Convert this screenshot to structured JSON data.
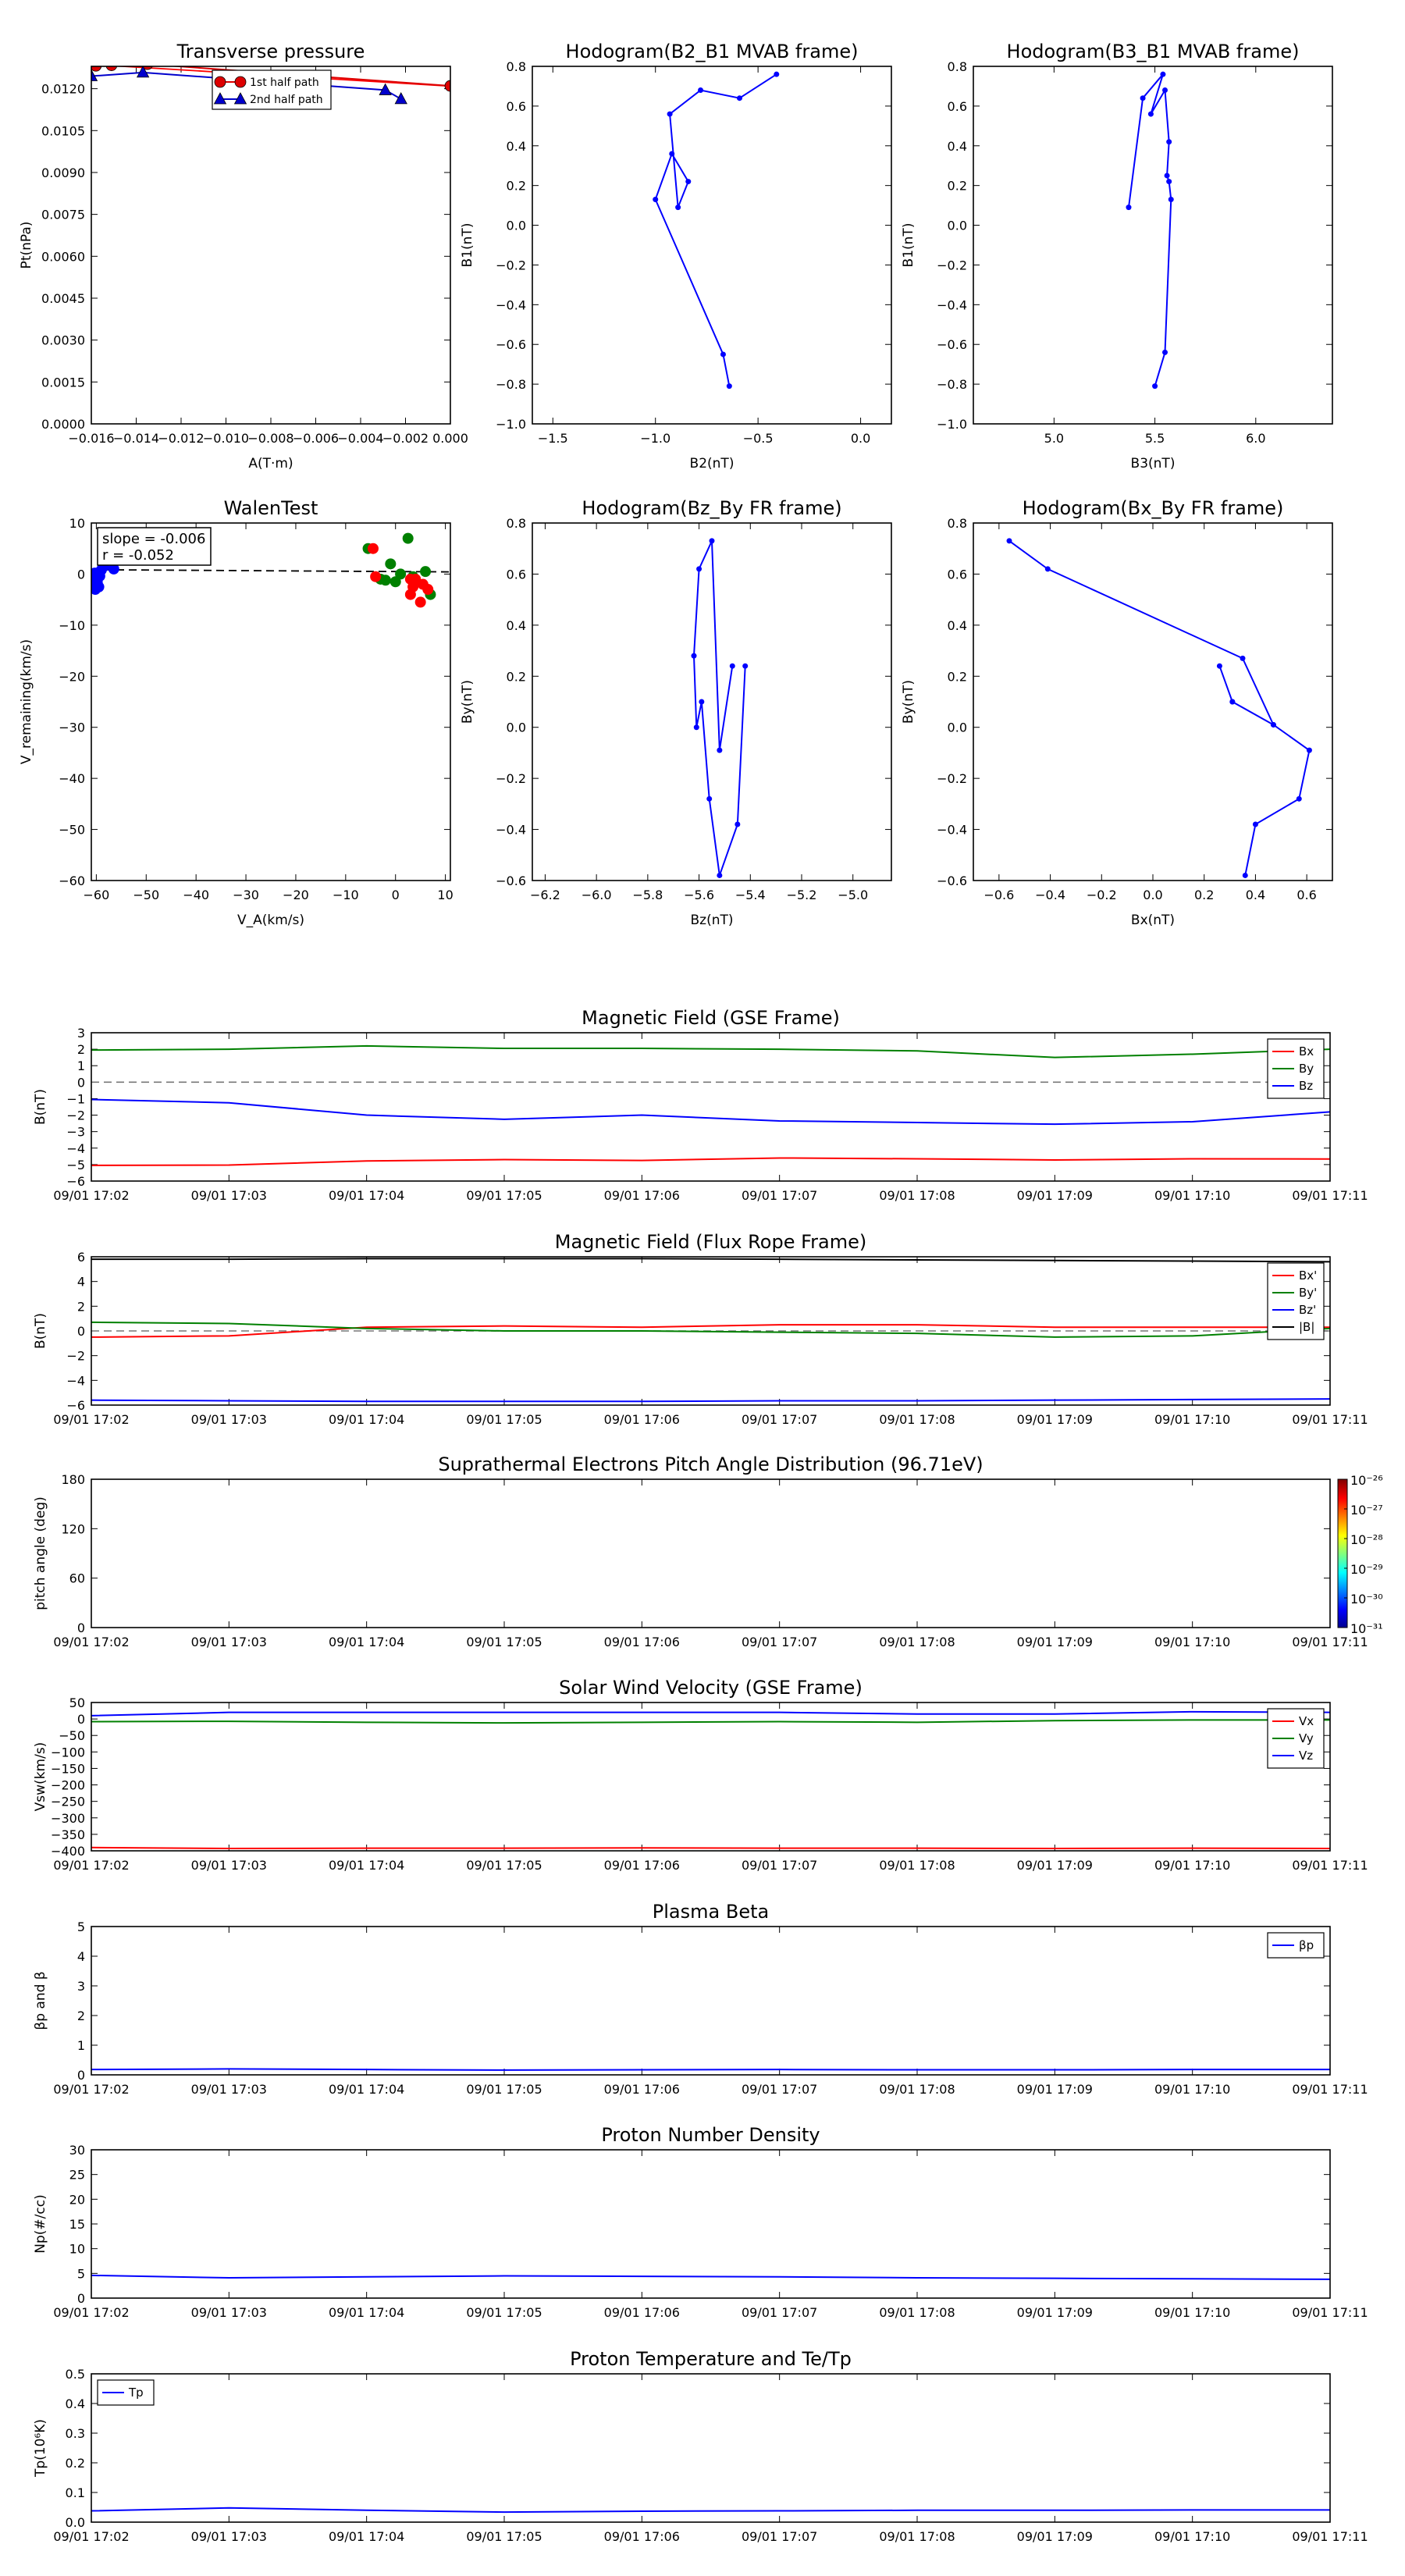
{
  "time_ticks": [
    "09/01 17:02",
    "09/01 17:03",
    "09/01 17:04",
    "09/01 17:05",
    "09/01 17:06",
    "09/01 17:07",
    "09/01 17:08",
    "09/01 17:09",
    "09/01 17:10",
    "09/01 17:11"
  ],
  "chart_data": [
    {
      "id": "pt",
      "type": "line",
      "title": "Transverse pressure",
      "xlabel": "A(T·m)",
      "ylabel": "Pt(nPa)",
      "xlim": [
        -0.016,
        0.0
      ],
      "ylim": [
        0.0,
        0.0128
      ],
      "xticks": [
        -0.016,
        -0.014,
        -0.012,
        -0.01,
        -0.008,
        -0.006,
        -0.004,
        -0.002,
        0.0
      ],
      "xticklabels": [
        "−0.016",
        "−0.014",
        "−0.012",
        "−0.010",
        "−0.008",
        "−0.006",
        "−0.004",
        "−0.002",
        "0.000"
      ],
      "yticks": [
        0,
        0.0015,
        0.003,
        0.0045,
        0.006,
        0.0075,
        0.009,
        0.0105,
        0.012
      ],
      "yticklabels": [
        "0.0000",
        "0.0015",
        "0.0030",
        "0.0045",
        "0.0060",
        "0.0075",
        "0.0090",
        "0.0105",
        "0.0120"
      ],
      "legend": "top-center",
      "fit_line": {
        "x": [
          -0.016,
          0.0
        ],
        "y": [
          0.01287,
          0.01209
        ],
        "color": "#ff0000"
      },
      "series": [
        {
          "name": "1st half path",
          "color": "#dd0000",
          "marker": "circle",
          "x": [
            -0.0158,
            -0.0151,
            -0.0135,
            -0.0
          ],
          "y": [
            0.01282,
            0.01284,
            0.01288,
            0.0121
          ]
        },
        {
          "name": "2nd half path",
          "color": "#0000cc",
          "marker": "triangle",
          "x": [
            -0.016,
            -0.0137,
            -0.0029,
            -0.0022
          ],
          "y": [
            0.01245,
            0.01258,
            0.01195,
            0.01163
          ]
        }
      ]
    },
    {
      "id": "h1",
      "type": "line",
      "title": "Hodogram(B2_B1 MVAB frame)",
      "xlabel": "B2(nT)",
      "ylabel": "B1(nT)",
      "xlim": [
        -1.6,
        0.15
      ],
      "ylim": [
        -1.0,
        0.8
      ],
      "xticks": [
        -1.5,
        -1.0,
        -0.5,
        0.0
      ],
      "xticklabels": [
        "−1.5",
        "−1.0",
        "−0.5",
        "0.0"
      ],
      "yticks": [
        -1.0,
        -0.8,
        -0.6,
        -0.4,
        -0.2,
        0.0,
        0.2,
        0.4,
        0.6,
        0.8
      ],
      "yticklabels": [
        "−1.0",
        "−0.8",
        "−0.6",
        "−0.4",
        "−0.2",
        "0.0",
        "0.2",
        "0.4",
        "0.6",
        "0.8"
      ],
      "series": [
        {
          "name": "",
          "color": "#0000ff",
          "marker": "dot",
          "x": [
            -0.64,
            -0.67,
            -1.0,
            -0.92,
            -0.84,
            -0.89,
            -0.93,
            -0.78,
            -0.59,
            -0.41
          ],
          "y": [
            -0.81,
            -0.65,
            0.13,
            0.36,
            0.22,
            0.09,
            0.56,
            0.68,
            0.64,
            0.76
          ]
        }
      ]
    },
    {
      "id": "h2",
      "type": "line",
      "title": "Hodogram(B3_B1 MVAB frame)",
      "xlabel": "B3(nT)",
      "ylabel": "B1(nT)",
      "xlim": [
        4.6,
        6.38
      ],
      "ylim": [
        -1.0,
        0.8
      ],
      "xticks": [
        5.0,
        5.5,
        6.0
      ],
      "xticklabels": [
        "5.0",
        "5.5",
        "6.0"
      ],
      "yticks": [
        -1.0,
        -0.8,
        -0.6,
        -0.4,
        -0.2,
        0.0,
        0.2,
        0.4,
        0.6,
        0.8
      ],
      "yticklabels": [
        "−1.0",
        "−0.8",
        "−0.6",
        "−0.4",
        "−0.2",
        "0.0",
        "0.2",
        "0.4",
        "0.6",
        "0.8"
      ],
      "series": [
        {
          "name": "",
          "color": "#0000ff",
          "marker": "dot",
          "x": [
            5.37,
            5.44,
            5.54,
            5.48,
            5.55,
            5.57,
            5.56,
            5.57,
            5.58,
            5.55,
            5.5
          ],
          "y": [
            0.09,
            0.64,
            0.76,
            0.56,
            0.68,
            0.42,
            0.25,
            0.22,
            0.13,
            -0.64,
            -0.81
          ]
        }
      ]
    },
    {
      "id": "walen",
      "type": "scatter",
      "title": "WalenTest",
      "xlabel": "V_A(km/s)",
      "ylabel": "V_remaining(km/s)",
      "xlim": [
        -61,
        11
      ],
      "ylim": [
        -60,
        10
      ],
      "xticks": [
        -60,
        -50,
        -40,
        -30,
        -20,
        -10,
        0,
        10
      ],
      "xticklabels": [
        "−60",
        "−50",
        "−40",
        "−30",
        "−20",
        "−10",
        "0",
        "10"
      ],
      "yticks": [
        -60,
        -50,
        -40,
        -30,
        -20,
        -10,
        0,
        10
      ],
      "yticklabels": [
        "−60",
        "−50",
        "−40",
        "−30",
        "−20",
        "−10",
        "0",
        "10"
      ],
      "annotation": [
        "slope = -0.006",
        "r = -0.052"
      ],
      "fit_line": {
        "x": [
          -61,
          11
        ],
        "y": [
          0.86,
          0.43
        ],
        "color": "#000000"
      },
      "series": [
        {
          "name": "",
          "color": "#0000ff",
          "x": [
            -60.5,
            -59.5,
            -60.2,
            -59.8,
            -59.0,
            -58.5,
            -56.5,
            -60.0,
            -60.3,
            -59.3
          ],
          "y": [
            -1.0,
            -2.5,
            -3.0,
            -1.6,
            0.8,
            1.5,
            1.0,
            -2.0,
            0.2,
            -0.4
          ]
        },
        {
          "name": "",
          "color": "#008000",
          "x": [
            -5.5,
            -4.0,
            -3.0,
            -1.0,
            0.0,
            1.0,
            2.5,
            3.5,
            6.0,
            7.0,
            -2.0
          ],
          "y": [
            5.0,
            11.0,
            -1.0,
            2.0,
            -1.5,
            0.0,
            7.0,
            -0.5,
            0.5,
            -4.0,
            -1.2
          ]
        },
        {
          "name": "",
          "color": "#ff0000",
          "x": [
            -4.5,
            -4.0,
            3.0,
            3.5,
            4.0,
            5.0,
            5.5,
            6.5,
            3.0
          ],
          "y": [
            5.0,
            -0.5,
            -4.0,
            -2.5,
            -1.0,
            -5.5,
            -2.0,
            -3.0,
            -1.0
          ]
        }
      ]
    },
    {
      "id": "h3",
      "type": "line",
      "title": "Hodogram(Bz_By FR frame)",
      "xlabel": "Bz(nT)",
      "ylabel": "By(nT)",
      "xlim": [
        -6.25,
        -4.85
      ],
      "ylim": [
        -0.6,
        0.8
      ],
      "xticks": [
        -6.2,
        -6.0,
        -5.8,
        -5.6,
        -5.4,
        -5.2,
        -5.0
      ],
      "xticklabels": [
        "−6.2",
        "−6.0",
        "−5.8",
        "−5.6",
        "−5.4",
        "−5.2",
        "−5.0"
      ],
      "yticks": [
        -0.6,
        -0.4,
        -0.2,
        0.0,
        0.2,
        0.4,
        0.6,
        0.8
      ],
      "yticklabels": [
        "−0.6",
        "−0.4",
        "−0.2",
        "0.0",
        "0.2",
        "0.4",
        "0.6",
        "0.8"
      ],
      "series": [
        {
          "name": "",
          "color": "#0000ff",
          "marker": "dot",
          "x": [
            -5.42,
            -5.45,
            -5.52,
            -5.56,
            -5.59,
            -5.61,
            -5.62,
            -5.6,
            -5.55,
            -5.52,
            -5.47
          ],
          "y": [
            0.24,
            -0.38,
            -0.58,
            -0.28,
            0.1,
            0.0,
            0.28,
            0.62,
            0.73,
            -0.09,
            0.24
          ]
        }
      ]
    },
    {
      "id": "h4",
      "type": "line",
      "title": "Hodogram(Bx_By FR frame)",
      "xlabel": "Bx(nT)",
      "ylabel": "By(nT)",
      "xlim": [
        -0.7,
        0.7
      ],
      "ylim": [
        -0.6,
        0.8
      ],
      "xticks": [
        -0.6,
        -0.4,
        -0.2,
        0.0,
        0.2,
        0.4,
        0.6
      ],
      "xticklabels": [
        "−0.6",
        "−0.4",
        "−0.2",
        "0.0",
        "0.2",
        "0.4",
        "0.6"
      ],
      "yticks": [
        -0.6,
        -0.4,
        -0.2,
        0.0,
        0.2,
        0.4,
        0.6,
        0.8
      ],
      "yticklabels": [
        "−0.6",
        "−0.4",
        "−0.2",
        "0.0",
        "0.2",
        "0.4",
        "0.6",
        "0.8"
      ],
      "series": [
        {
          "name": "",
          "color": "#0000ff",
          "marker": "dot",
          "x": [
            -0.56,
            -0.41,
            0.35,
            0.47,
            0.31,
            0.26,
            0.31,
            0.47,
            0.61,
            0.57,
            0.4,
            0.36
          ],
          "y": [
            0.73,
            0.62,
            0.27,
            0.01,
            0.1,
            0.24,
            0.1,
            0.01,
            -0.09,
            -0.28,
            -0.38,
            -0.58
          ]
        }
      ]
    },
    {
      "id": "bgse",
      "type": "line",
      "title": "Magnetic Field (GSE Frame)",
      "ylabel": "B(nT)",
      "ylim": [
        -6,
        3
      ],
      "yticks": [
        -6,
        -5,
        -4,
        -3,
        -2,
        -1,
        0,
        1,
        2,
        3
      ],
      "yticklabels": [
        "−6",
        "−5",
        "−4",
        "−3",
        "−2",
        "−1",
        "0",
        "1",
        "2",
        "3"
      ],
      "zero_line": true,
      "legend": "top-right",
      "series": [
        {
          "name": "Bx",
          "color": "#ff0000",
          "values": [
            -5.05,
            -5.03,
            -4.78,
            -4.7,
            -4.75,
            -4.6,
            -4.65,
            -4.72,
            -4.65,
            -4.66
          ]
        },
        {
          "name": "By",
          "color": "#008000",
          "values": [
            1.95,
            2.0,
            2.2,
            2.05,
            2.05,
            2.0,
            1.9,
            1.5,
            1.7,
            2.0
          ]
        },
        {
          "name": "Bz",
          "color": "#0000ff",
          "values": [
            -1.05,
            -1.25,
            -2.0,
            -2.25,
            -2.0,
            -2.35,
            -2.45,
            -2.55,
            -2.4,
            -1.8
          ]
        }
      ]
    },
    {
      "id": "bfr",
      "type": "line",
      "title": "Magnetic Field (Flux Rope Frame)",
      "ylabel": "B(nT)",
      "ylim": [
        -6,
        6
      ],
      "yticks": [
        -6,
        -4,
        -2,
        0,
        2,
        4,
        6
      ],
      "yticklabels": [
        "−6",
        "−4",
        "−2",
        "0",
        "2",
        "4",
        "6"
      ],
      "zero_line": true,
      "legend": "top-right",
      "series": [
        {
          "name": "Bx'",
          "color": "#ff0000",
          "values": [
            -0.5,
            -0.4,
            0.3,
            0.4,
            0.3,
            0.5,
            0.5,
            0.3,
            0.3,
            0.3
          ]
        },
        {
          "name": "By'",
          "color": "#008000",
          "values": [
            0.7,
            0.6,
            0.2,
            0.0,
            0.0,
            -0.1,
            -0.2,
            -0.5,
            -0.4,
            0.2
          ]
        },
        {
          "name": "Bz'",
          "color": "#0000ff",
          "values": [
            -5.6,
            -5.65,
            -5.7,
            -5.7,
            -5.7,
            -5.65,
            -5.65,
            -5.6,
            -5.55,
            -5.5
          ]
        },
        {
          "name": "|B|",
          "color": "#000000",
          "values": [
            5.8,
            5.8,
            5.85,
            5.85,
            5.85,
            5.8,
            5.75,
            5.7,
            5.65,
            5.6
          ]
        }
      ]
    },
    {
      "id": "pad",
      "type": "heatmap",
      "title": "Suprathermal Electrons Pitch Angle Distribution (96.71eV)",
      "ylabel": "pitch angle (deg)",
      "ylim": [
        0,
        180
      ],
      "yticks": [
        0,
        60,
        120,
        180
      ],
      "yticklabels": [
        "0",
        "60",
        "120",
        "180"
      ],
      "colorbar_ticks": [
        "10⁻²⁶",
        "10⁻²⁷",
        "10⁻²⁸",
        "10⁻²⁹",
        "10⁻³⁰",
        "10⁻³¹"
      ]
    },
    {
      "id": "vsw",
      "type": "line",
      "title": "Solar Wind Velocity (GSE Frame)",
      "ylabel": "Vsw(km/s)",
      "ylim": [
        -400,
        50
      ],
      "yticks": [
        -400,
        -350,
        -300,
        -250,
        -200,
        -150,
        -100,
        -50,
        0,
        50
      ],
      "yticklabels": [
        "−400",
        "−350",
        "−300",
        "−250",
        "−200",
        "−150",
        "−100",
        "−50",
        "0",
        "50"
      ],
      "legend": "top-right",
      "series": [
        {
          "name": "Vx",
          "color": "#ff0000",
          "values": [
            -390,
            -393,
            -392,
            -392,
            -391,
            -392,
            -392,
            -393,
            -392,
            -393
          ]
        },
        {
          "name": "Vy",
          "color": "#008000",
          "values": [
            -8,
            -7,
            -10,
            -12,
            -10,
            -8,
            -10,
            -5,
            -3,
            -3
          ]
        },
        {
          "name": "Vz",
          "color": "#0000ff",
          "values": [
            10,
            20,
            20,
            20,
            20,
            20,
            15,
            15,
            22,
            20
          ]
        }
      ]
    },
    {
      "id": "beta",
      "type": "line",
      "title": "Plasma Beta",
      "ylabel": "βp and β",
      "ylim": [
        0,
        5
      ],
      "yticks": [
        0,
        1,
        2,
        3,
        4,
        5
      ],
      "yticklabels": [
        "0",
        "1",
        "2",
        "3",
        "4",
        "5"
      ],
      "legend": "top-right",
      "series": [
        {
          "name": "βp",
          "color": "#0000ff",
          "values": [
            0.18,
            0.2,
            0.18,
            0.16,
            0.17,
            0.18,
            0.17,
            0.17,
            0.18,
            0.18
          ]
        }
      ]
    },
    {
      "id": "np",
      "type": "line",
      "title": "Proton Number Density",
      "ylabel": "Np(#/cc)",
      "ylim": [
        0,
        30
      ],
      "yticks": [
        0,
        5,
        10,
        15,
        20,
        25,
        30
      ],
      "yticklabels": [
        "0",
        "5",
        "10",
        "15",
        "20",
        "25",
        "30"
      ],
      "series": [
        {
          "name": "",
          "color": "#0000ff",
          "values": [
            4.6,
            4.1,
            4.3,
            4.5,
            4.4,
            4.3,
            4.1,
            4.0,
            3.9,
            3.8
          ]
        }
      ]
    },
    {
      "id": "tp",
      "type": "line",
      "title": "Proton Temperature and Te/Tp",
      "ylabel": "Tp(10⁶K)",
      "ylim": [
        0,
        0.5
      ],
      "yticks": [
        0,
        0.1,
        0.2,
        0.3,
        0.4,
        0.5
      ],
      "yticklabels": [
        "0.0",
        "0.1",
        "0.2",
        "0.3",
        "0.4",
        "0.5"
      ],
      "legend": "top-left",
      "series": [
        {
          "name": "Tp",
          "color": "#0000ff",
          "values": [
            0.038,
            0.048,
            0.04,
            0.034,
            0.037,
            0.038,
            0.04,
            0.04,
            0.041,
            0.041
          ]
        }
      ]
    }
  ]
}
